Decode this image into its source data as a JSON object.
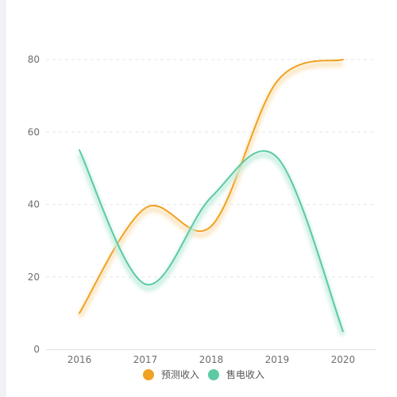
{
  "chart_data": {
    "type": "line",
    "smooth": true,
    "x": [
      "2016",
      "2017",
      "2018",
      "2019",
      "2020"
    ],
    "ylim": [
      0,
      80
    ],
    "yticks": [
      "0",
      "20",
      "40",
      "60",
      "80"
    ],
    "grid": "horizontal-dashed",
    "legend_position": "bottom-center",
    "series": [
      {
        "name": "预测收入",
        "color": "#f0a223",
        "glow": "#fbe6c2",
        "values": [
          10,
          39,
          34,
          74,
          80
        ]
      },
      {
        "name": "售电收入",
        "color": "#5ccaa2",
        "glow": "#c9efe1",
        "values": [
          55,
          18,
          42,
          53,
          5
        ]
      }
    ]
  }
}
